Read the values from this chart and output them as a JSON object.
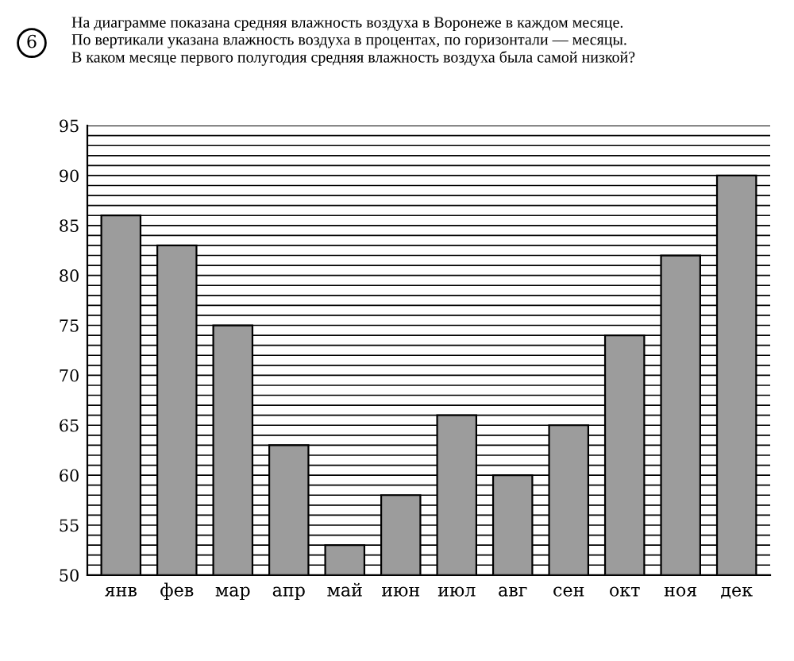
{
  "chart_data": {
    "type": "bar",
    "title": "На диаграмме показана средняя влажность воздуха в Воронеже в каждом месяце.\nПо вертикали указана влажность воздуха в процентах, по горизонтали — месяцы.\nВ каком месяце первого полугодия средняя влажность воздуха была самой низкой?",
    "annotations": [
      "6"
    ],
    "categories": [
      "янв",
      "фев",
      "мар",
      "апр",
      "май",
      "июн",
      "июл",
      "авг",
      "сен",
      "окт",
      "ноя",
      "дек"
    ],
    "values": [
      86,
      83,
      75,
      63,
      53,
      58,
      66,
      60,
      65,
      74,
      82,
      90
    ],
    "color": "#9c9c9c",
    "ylim": [
      50,
      95
    ],
    "yticks": [
      50,
      {
        "value": 51,
        "label": null
      },
      {
        "value": 52,
        "label": null
      },
      {
        "value": 53,
        "label": null
      },
      {
        "value": 54,
        "label": null
      },
      55,
      {
        "value": 56,
        "label": null
      },
      {
        "value": 57,
        "label": null
      },
      {
        "value": 58,
        "label": null
      },
      {
        "value": 59,
        "label": null
      },
      60,
      {
        "value": 61,
        "label": null
      },
      {
        "value": 62,
        "label": null
      },
      {
        "value": 63,
        "label": null
      },
      {
        "value": 64,
        "label": null
      },
      65,
      {
        "value": 66,
        "label": null
      },
      {
        "value": 67,
        "label": null
      },
      {
        "value": 68,
        "label": null
      },
      {
        "value": 69,
        "label": null
      },
      70,
      {
        "value": 71,
        "label": null
      },
      {
        "value": 72,
        "label": null
      },
      {
        "value": 73,
        "label": null
      },
      {
        "value": 74,
        "label": null
      },
      75,
      {
        "value": 76,
        "label": null
      },
      {
        "value": 77,
        "label": null
      },
      {
        "value": 78,
        "label": null
      },
      {
        "value": 79,
        "label": null
      },
      80,
      {
        "value": 81,
        "label": null
      },
      {
        "value": 82,
        "label": null
      },
      {
        "value": 83,
        "label": null
      },
      {
        "value": 84,
        "label": null
      },
      85,
      {
        "value": 86,
        "label": null
      },
      {
        "value": 87,
        "label": null
      },
      {
        "value": 88,
        "label": null
      },
      {
        "value": 89,
        "label": null
      },
      90,
      {
        "value": 91,
        "label": null
      },
      {
        "value": 92,
        "label": null
      },
      {
        "value": 93,
        "label": null
      },
      {
        "value": 94,
        "label": null
      },
      95
    ],
    "grid": "y"
  }
}
